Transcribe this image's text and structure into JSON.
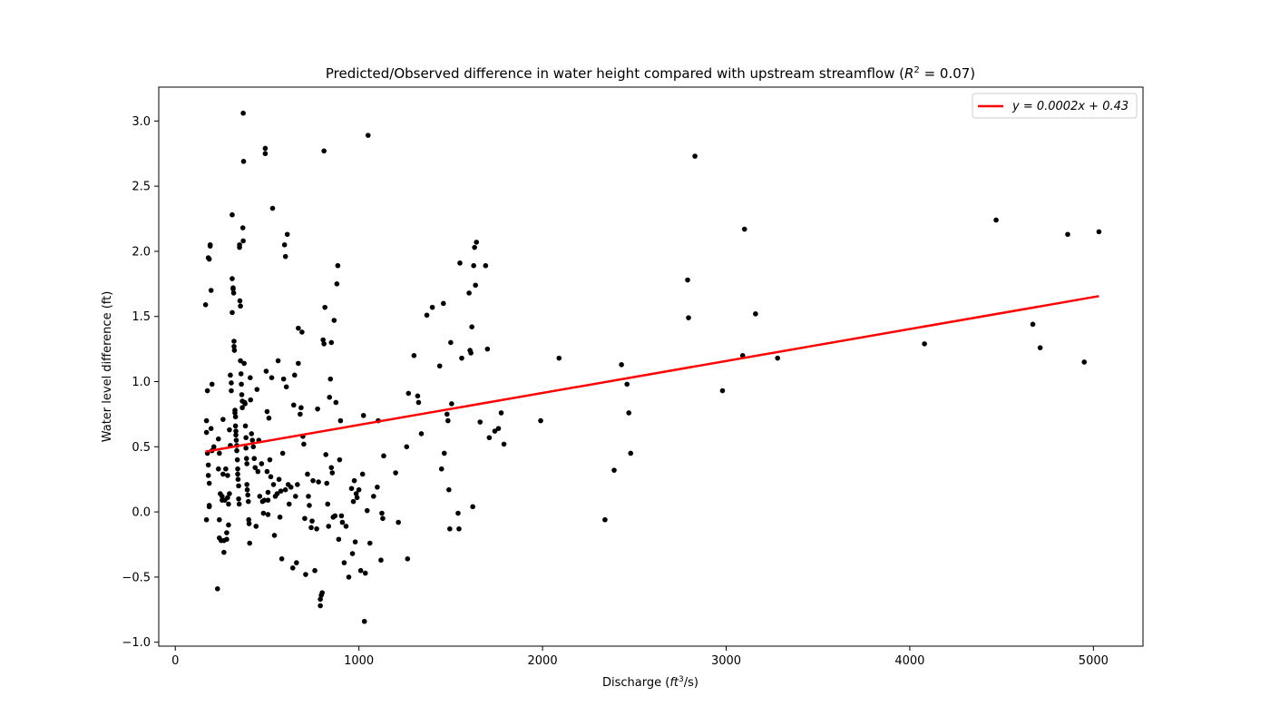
{
  "chart_data": {
    "type": "scatter",
    "title": "Predicted/Observed difference in water height compared with upstream streamflow (R² = 0.07)",
    "title_parts": {
      "main": "Predicted/Observed difference in water height compared with upstream streamflow (",
      "r": "R",
      "exp": "2",
      "rest": " = 0.07)"
    },
    "xlabel": "Discharge (ft³/s)",
    "xlabel_parts": {
      "pre": "Discharge (",
      "ft": "ft",
      "exp": "3",
      "post": "/s)"
    },
    "ylabel": "Water level difference (ft)",
    "xlim": [
      -90,
      5270
    ],
    "ylim": [
      -1.03,
      3.26
    ],
    "xticks": [
      0,
      1000,
      2000,
      3000,
      4000,
      5000
    ],
    "yticks": [
      -1.0,
      -0.5,
      0.0,
      0.5,
      1.0,
      1.5,
      2.0,
      2.5,
      3.0
    ],
    "xtick_labels": [
      "0",
      "1000",
      "2000",
      "3000",
      "4000",
      "5000"
    ],
    "ytick_labels": [
      "−1.0",
      "−0.5",
      "0.0",
      "0.5",
      "1.0",
      "1.5",
      "2.0",
      "2.5",
      "3.0"
    ],
    "grid": false,
    "legend": {
      "placement": "top-right",
      "entries": [
        {
          "label": "y = 0.0002x + 0.43",
          "color": "#ff0000",
          "type": "line"
        }
      ]
    },
    "point_color": "#000000",
    "fit_line": {
      "color": "#ff0000",
      "x": [
        165,
        5030
      ],
      "y": [
        0.463,
        1.656
      ],
      "equation": "y = 0.0002x + 0.43"
    },
    "series": [
      {
        "type": "scatter",
        "points": [
          [
            165,
            1.59
          ],
          [
            170,
            0.7
          ],
          [
            170,
            0.61
          ],
          [
            175,
            0.93
          ],
          [
            175,
            0.45
          ],
          [
            180,
            0.36
          ],
          [
            180,
            0.28
          ],
          [
            185,
            0.22
          ],
          [
            185,
            0.05
          ],
          [
            170,
            -0.06
          ],
          [
            180,
            1.95
          ],
          [
            185,
            1.94
          ],
          [
            190,
            2.05
          ],
          [
            190,
            2.04
          ],
          [
            195,
            1.7
          ],
          [
            195,
            0.64
          ],
          [
            200,
            0.98
          ],
          [
            185,
            0.04
          ],
          [
            200,
            0.47
          ],
          [
            210,
            0.5
          ],
          [
            230,
            -0.59
          ],
          [
            235,
            0.56
          ],
          [
            235,
            0.33
          ],
          [
            240,
            -0.06
          ],
          [
            240,
            -0.2
          ],
          [
            245,
            0.14
          ],
          [
            240,
            0.45
          ],
          [
            250,
            -0.22
          ],
          [
            255,
            0.09
          ],
          [
            255,
            0.12
          ],
          [
            260,
            0.71
          ],
          [
            260,
            0.29
          ],
          [
            265,
            -0.22
          ],
          [
            265,
            -0.31
          ],
          [
            270,
            0.09
          ],
          [
            275,
            0.33
          ],
          [
            280,
            -0.21
          ],
          [
            280,
            -0.16
          ],
          [
            285,
            0.11
          ],
          [
            285,
            0.28
          ],
          [
            290,
            0.06
          ],
          [
            290,
            -0.1
          ],
          [
            295,
            0.14
          ],
          [
            295,
            0.63
          ],
          [
            300,
            1.05
          ],
          [
            300,
            0.51
          ],
          [
            305,
            0.99
          ],
          [
            305,
            0.93
          ],
          [
            310,
            2.28
          ],
          [
            310,
            1.53
          ],
          [
            310,
            1.79
          ],
          [
            315,
            1.71
          ],
          [
            315,
            1.72
          ],
          [
            318,
            1.68
          ],
          [
            320,
            1.31
          ],
          [
            320,
            1.27
          ],
          [
            322,
            1.24
          ],
          [
            325,
            0.78
          ],
          [
            325,
            0.76
          ],
          [
            328,
            0.73
          ],
          [
            328,
            0.66
          ],
          [
            330,
            0.62
          ],
          [
            330,
            0.59
          ],
          [
            332,
            0.55
          ],
          [
            335,
            0.51
          ],
          [
            335,
            0.47
          ],
          [
            338,
            0.4
          ],
          [
            340,
            0.33
          ],
          [
            340,
            0.29
          ],
          [
            342,
            0.25
          ],
          [
            345,
            0.2
          ],
          [
            345,
            0.1
          ],
          [
            348,
            0.06
          ],
          [
            350,
            2.03
          ],
          [
            350,
            2.05
          ],
          [
            352,
            1.62
          ],
          [
            355,
            1.58
          ],
          [
            355,
            1.16
          ],
          [
            358,
            1.06
          ],
          [
            360,
            0.98
          ],
          [
            362,
            0.9
          ],
          [
            365,
            0.85
          ],
          [
            365,
            0.8
          ],
          [
            368,
            2.18
          ],
          [
            370,
            2.08
          ],
          [
            370,
            3.06
          ],
          [
            372,
            2.69
          ],
          [
            375,
            1.14
          ],
          [
            378,
            0.84
          ],
          [
            380,
            0.83
          ],
          [
            382,
            0.66
          ],
          [
            385,
            0.57
          ],
          [
            385,
            0.49
          ],
          [
            388,
            0.41
          ],
          [
            390,
            0.37
          ],
          [
            390,
            0.21
          ],
          [
            392,
            0.17
          ],
          [
            395,
            0.13
          ],
          [
            398,
            0.08
          ],
          [
            400,
            -0.06
          ],
          [
            402,
            -0.09
          ],
          [
            405,
            -0.24
          ],
          [
            408,
            1.03
          ],
          [
            410,
            0.86
          ],
          [
            415,
            0.6
          ],
          [
            420,
            0.55
          ],
          [
            425,
            0.5
          ],
          [
            430,
            0.41
          ],
          [
            435,
            0.34
          ],
          [
            440,
            -0.11
          ],
          [
            445,
            0.94
          ],
          [
            450,
            0.31
          ],
          [
            455,
            0.55
          ],
          [
            460,
            0.12
          ],
          [
            470,
            0.37
          ],
          [
            475,
            0.08
          ],
          [
            480,
            -0.01
          ],
          [
            485,
            0.09
          ],
          [
            490,
            2.79
          ],
          [
            490,
            2.75
          ],
          [
            495,
            1.08
          ],
          [
            500,
            0.77
          ],
          [
            500,
            0.31
          ],
          [
            505,
            0.15
          ],
          [
            505,
            0.09
          ],
          [
            505,
            -0.02
          ],
          [
            510,
            0.72
          ],
          [
            515,
            0.4
          ],
          [
            520,
            0.27
          ],
          [
            525,
            1.03
          ],
          [
            530,
            2.33
          ],
          [
            535,
            0.21
          ],
          [
            540,
            -0.18
          ],
          [
            545,
            0.12
          ],
          [
            555,
            0.14
          ],
          [
            560,
            1.16
          ],
          [
            565,
            0.25
          ],
          [
            570,
            -0.04
          ],
          [
            575,
            0.16
          ],
          [
            580,
            -0.36
          ],
          [
            585,
            0.45
          ],
          [
            590,
            1.02
          ],
          [
            595,
            2.05
          ],
          [
            600,
            1.96
          ],
          [
            600,
            0.17
          ],
          [
            605,
            0.96
          ],
          [
            610,
            2.13
          ],
          [
            615,
            0.21
          ],
          [
            620,
            0.06
          ],
          [
            630,
            0.19
          ],
          [
            640,
            -0.43
          ],
          [
            645,
            0.82
          ],
          [
            650,
            1.05
          ],
          [
            655,
            0.12
          ],
          [
            660,
            -0.39
          ],
          [
            665,
            0.21
          ],
          [
            670,
            1.41
          ],
          [
            670,
            1.14
          ],
          [
            680,
            0.75
          ],
          [
            685,
            0.8
          ],
          [
            690,
            1.38
          ],
          [
            695,
            0.58
          ],
          [
            700,
            0.52
          ],
          [
            705,
            -0.05
          ],
          [
            710,
            -0.48
          ],
          [
            720,
            0.29
          ],
          [
            725,
            0.12
          ],
          [
            730,
            0.05
          ],
          [
            740,
            -0.12
          ],
          [
            745,
            -0.07
          ],
          [
            750,
            0.24
          ],
          [
            760,
            -0.45
          ],
          [
            770,
            -0.13
          ],
          [
            775,
            0.79
          ],
          [
            780,
            0.23
          ],
          [
            790,
            -0.67
          ],
          [
            790,
            -0.72
          ],
          [
            795,
            -0.64
          ],
          [
            800,
            -0.62
          ],
          [
            805,
            1.32
          ],
          [
            810,
            2.77
          ],
          [
            810,
            1.29
          ],
          [
            815,
            1.57
          ],
          [
            820,
            0.44
          ],
          [
            825,
            0.22
          ],
          [
            830,
            0.06
          ],
          [
            835,
            -0.11
          ],
          [
            840,
            0.88
          ],
          [
            845,
            1.02
          ],
          [
            850,
            0.34
          ],
          [
            850,
            1.3
          ],
          [
            855,
            0.3
          ],
          [
            860,
            -0.04
          ],
          [
            865,
            1.47
          ],
          [
            870,
            -0.03
          ],
          [
            875,
            0.84
          ],
          [
            880,
            1.75
          ],
          [
            885,
            1.89
          ],
          [
            890,
            -0.21
          ],
          [
            895,
            0.4
          ],
          [
            900,
            0.7
          ],
          [
            905,
            -0.03
          ],
          [
            910,
            -0.08
          ],
          [
            920,
            -0.39
          ],
          [
            930,
            -0.11
          ],
          [
            945,
            -0.5
          ],
          [
            960,
            0.18
          ],
          [
            965,
            -0.32
          ],
          [
            970,
            0.08
          ],
          [
            975,
            0.24
          ],
          [
            980,
            -0.23
          ],
          [
            985,
            0.14
          ],
          [
            990,
            0.11
          ],
          [
            1000,
            0.17
          ],
          [
            1010,
            -0.45
          ],
          [
            1020,
            0.29
          ],
          [
            1025,
            0.74
          ],
          [
            1030,
            -0.84
          ],
          [
            1035,
            -0.47
          ],
          [
            1045,
            0.01
          ],
          [
            1050,
            2.89
          ],
          [
            1060,
            -0.24
          ],
          [
            1080,
            0.12
          ],
          [
            1100,
            0.19
          ],
          [
            1105,
            0.7
          ],
          [
            1120,
            -0.37
          ],
          [
            1125,
            -0.01
          ],
          [
            1130,
            -0.05
          ],
          [
            1135,
            0.43
          ],
          [
            1200,
            0.3
          ],
          [
            1215,
            -0.08
          ],
          [
            1260,
            0.5
          ],
          [
            1265,
            -0.36
          ],
          [
            1270,
            0.91
          ],
          [
            1300,
            1.2
          ],
          [
            1320,
            0.89
          ],
          [
            1325,
            0.84
          ],
          [
            1340,
            0.6
          ],
          [
            1370,
            1.51
          ],
          [
            1400,
            1.57
          ],
          [
            1440,
            1.12
          ],
          [
            1450,
            0.33
          ],
          [
            1460,
            1.6
          ],
          [
            1465,
            0.45
          ],
          [
            1480,
            0.75
          ],
          [
            1485,
            0.7
          ],
          [
            1490,
            0.17
          ],
          [
            1495,
            -0.13
          ],
          [
            1500,
            1.3
          ],
          [
            1505,
            0.83
          ],
          [
            1540,
            -0.01
          ],
          [
            1545,
            -0.13
          ],
          [
            1550,
            1.91
          ],
          [
            1560,
            1.18
          ],
          [
            1600,
            1.68
          ],
          [
            1605,
            1.24
          ],
          [
            1610,
            1.22
          ],
          [
            1615,
            1.42
          ],
          [
            1620,
            0.04
          ],
          [
            1625,
            1.89
          ],
          [
            1630,
            2.03
          ],
          [
            1635,
            1.74
          ],
          [
            1640,
            2.07
          ],
          [
            1660,
            0.69
          ],
          [
            1690,
            1.89
          ],
          [
            1700,
            1.25
          ],
          [
            1710,
            0.57
          ],
          [
            1740,
            0.62
          ],
          [
            1760,
            0.64
          ],
          [
            1775,
            0.76
          ],
          [
            1790,
            0.52
          ],
          [
            1990,
            0.7
          ],
          [
            2090,
            1.18
          ],
          [
            2340,
            -0.06
          ],
          [
            2390,
            0.32
          ],
          [
            2430,
            1.13
          ],
          [
            2460,
            0.98
          ],
          [
            2470,
            0.76
          ],
          [
            2480,
            0.45
          ],
          [
            2790,
            1.78
          ],
          [
            2795,
            1.49
          ],
          [
            2830,
            2.73
          ],
          [
            2980,
            0.93
          ],
          [
            3090,
            1.2
          ],
          [
            3100,
            2.17
          ],
          [
            3160,
            1.52
          ],
          [
            3280,
            1.18
          ],
          [
            4080,
            1.29
          ],
          [
            4470,
            2.24
          ],
          [
            4670,
            1.44
          ],
          [
            4710,
            1.26
          ],
          [
            4860,
            2.13
          ],
          [
            4950,
            1.15
          ],
          [
            5030,
            2.15
          ]
        ]
      }
    ]
  }
}
